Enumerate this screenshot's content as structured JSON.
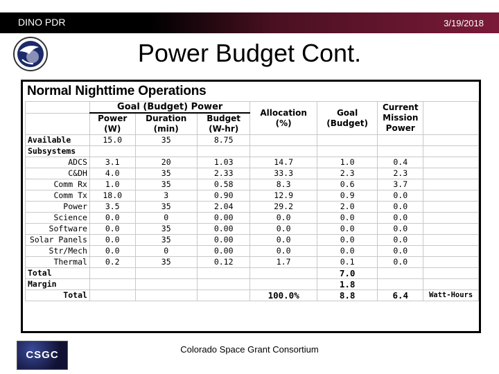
{
  "header": {
    "left_text": "DINO PDR",
    "right_text": "3/19/2018"
  },
  "slide_title": "Power Budget Cont.",
  "table": {
    "heading": "Normal Nighttime Operations",
    "group_header": "Goal (Budget) Power",
    "col_headers": {
      "power": [
        "Power",
        "(W)"
      ],
      "duration": [
        "Duration",
        "(min)"
      ],
      "budget": [
        "Budget",
        "(W-hr)"
      ],
      "allocation": [
        "Allocation",
        "(%)"
      ],
      "goal": [
        "Goal",
        "(Budget)"
      ],
      "current": [
        "Current",
        "Mission",
        "Power"
      ]
    },
    "available": {
      "label": "Available",
      "power": "15.0",
      "duration": "35",
      "budget": "8.75"
    },
    "subsystems_label": "Subsystems",
    "rows": [
      {
        "name": "ADCS",
        "power": "3.1",
        "duration": "20",
        "budget": "1.03",
        "alloc": "14.7",
        "goal": "1.0",
        "current": "0.4"
      },
      {
        "name": "C&DH",
        "power": "4.0",
        "duration": "35",
        "budget": "2.33",
        "alloc": "33.3",
        "goal": "2.3",
        "current": "2.3"
      },
      {
        "name": "Comm Rx",
        "power": "1.0",
        "duration": "35",
        "budget": "0.58",
        "alloc": "8.3",
        "goal": "0.6",
        "current": "3.7"
      },
      {
        "name": "Comm Tx",
        "power": "18.0",
        "duration": "3",
        "budget": "0.90",
        "alloc": "12.9",
        "goal": "0.9",
        "current": "0.0"
      },
      {
        "name": "Power",
        "power": "3.5",
        "duration": "35",
        "budget": "2.04",
        "alloc": "29.2",
        "goal": "2.0",
        "current": "0.0"
      },
      {
        "name": "Science",
        "power": "0.0",
        "duration": "0",
        "budget": "0.00",
        "alloc": "0.0",
        "goal": "0.0",
        "current": "0.0"
      },
      {
        "name": "Software",
        "power": "0.0",
        "duration": "35",
        "budget": "0.00",
        "alloc": "0.0",
        "goal": "0.0",
        "current": "0.0"
      },
      {
        "name": "Solar Panels",
        "power": "0.0",
        "duration": "35",
        "budget": "0.00",
        "alloc": "0.0",
        "goal": "0.0",
        "current": "0.0"
      },
      {
        "name": "Str/Mech",
        "power": "0.0",
        "duration": "0",
        "budget": "0.00",
        "alloc": "0.0",
        "goal": "0.0",
        "current": "0.0"
      },
      {
        "name": "Thermal",
        "power": "0.2",
        "duration": "35",
        "budget": "0.12",
        "alloc": "1.7",
        "goal": "0.1",
        "current": "0.0"
      }
    ],
    "total": {
      "label": "Total",
      "goal": "7.0"
    },
    "margin": {
      "label": "Margin",
      "goal": "1.8"
    },
    "grand_total": {
      "label": "Total",
      "alloc": "100.0%",
      "goal": "8.8",
      "current": "6.4",
      "unit": "Watt-Hours"
    }
  },
  "footer": {
    "logo_text": "CSGC",
    "text": "Colorado Space Grant Consortium"
  },
  "colors": {
    "header_dark": "#000000",
    "header_accent": "#7a1a38"
  }
}
